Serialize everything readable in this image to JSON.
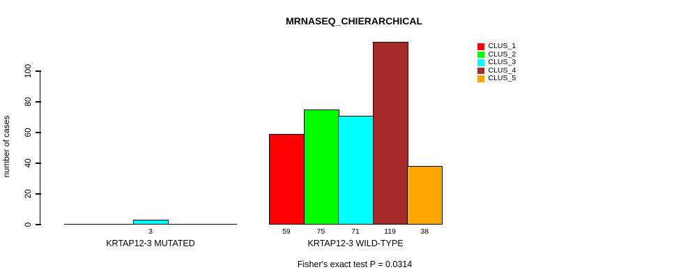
{
  "chart_data": {
    "type": "bar",
    "title": "MRNASEQ_CHIERARCHICAL",
    "ylabel": "number of cases",
    "xlabel": "",
    "ylim": [
      0,
      100
    ],
    "yticks": [
      0,
      20,
      40,
      60,
      80,
      100
    ],
    "grid": false,
    "legend_position": "top-right",
    "categories": [
      "KRTAP12-3 MUTATED",
      "KRTAP12-3 WILD-TYPE"
    ],
    "series": [
      {
        "name": "CLUS_1",
        "color": "#ff0000",
        "values": [
          0,
          59
        ]
      },
      {
        "name": "CLUS_2",
        "color": "#00ff00",
        "values": [
          0,
          75
        ]
      },
      {
        "name": "CLUS_3",
        "color": "#00ffff",
        "values": [
          3,
          71
        ]
      },
      {
        "name": "CLUS_4",
        "color": "#a52a2a",
        "values": [
          0,
          119
        ]
      },
      {
        "name": "CLUS_5",
        "color": "#ffa500",
        "values": [
          0,
          38
        ]
      }
    ],
    "annotation": "Fisher's exact test P = 0.0314"
  }
}
